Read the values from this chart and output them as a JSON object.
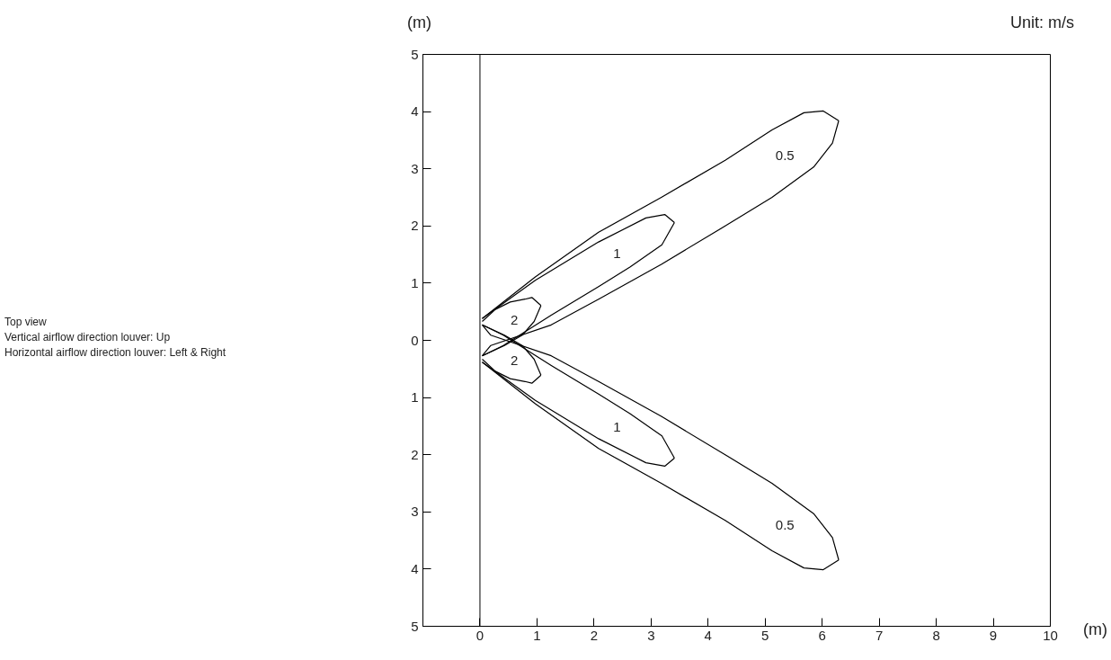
{
  "chart_data": {
    "type": "line",
    "subtitle": "Unit: m/s",
    "xlabel": "(m)",
    "ylabel": "(m)",
    "annotations": [
      "Top view\nVertical airflow direction louver: Up\nHorizontal airflow direction louver: Left & Right"
    ],
    "series": [
      {
        "name": "0.5",
        "color": "#000000",
        "x": [
          0.04,
          0.97,
          2.08,
          3.18,
          4.3,
          5.12,
          5.68,
          6.02,
          6.29
        ],
        "values": [
          0.38,
          1.11,
          1.89,
          2.5,
          3.15,
          3.68,
          3.98,
          4.01,
          3.84
        ]
      },
      {
        "color": "#000000",
        "x": [
          0.04,
          0.19,
          1.25,
          2.08,
          3.18,
          4.3,
          5.12,
          5.85,
          6.18,
          6.29
        ],
        "values": [
          -0.27,
          -0.09,
          0.27,
          0.72,
          1.33,
          2.0,
          2.5,
          3.03,
          3.45,
          3.84
        ]
      },
      {
        "name": "1",
        "color": "#000000",
        "x": [
          0.04,
          0.97,
          2.08,
          2.91,
          3.24,
          3.41
        ],
        "values": [
          0.38,
          1.05,
          1.72,
          2.14,
          2.2,
          2.06
        ]
      },
      {
        "color": "#000000",
        "x": [
          0.04,
          0.41,
          1.25,
          2.08,
          2.63,
          3.19,
          3.41
        ],
        "values": [
          -0.27,
          -0.09,
          0.44,
          0.94,
          1.28,
          1.67,
          2.06
        ]
      },
      {
        "name": "2",
        "color": "#000000",
        "x": [
          0.04,
          0.27,
          0.53,
          0.79,
          0.91,
          1.07
        ],
        "values": [
          0.33,
          0.54,
          0.67,
          0.72,
          0.75,
          0.61
        ]
      },
      {
        "color": "#000000",
        "x": [
          0.04,
          0.43,
          0.74,
          0.95,
          1.07
        ],
        "values": [
          -0.27,
          -0.09,
          0.09,
          0.33,
          0.61
        ]
      },
      {
        "name": "2",
        "color": "#000000",
        "x": [
          0.04,
          0.27,
          0.53,
          0.79,
          0.91,
          1.07
        ],
        "values": [
          -0.33,
          -0.54,
          -0.67,
          -0.72,
          -0.75,
          -0.61
        ]
      },
      {
        "color": "#000000",
        "x": [
          0.04,
          0.43,
          0.74,
          0.95,
          1.07
        ],
        "values": [
          0.27,
          0.09,
          -0.09,
          -0.33,
          -0.61
        ]
      },
      {
        "name": "1",
        "color": "#000000",
        "x": [
          0.04,
          0.97,
          2.08,
          2.91,
          3.24,
          3.41
        ],
        "values": [
          -0.38,
          -1.05,
          -1.72,
          -2.14,
          -2.2,
          -2.06
        ]
      },
      {
        "color": "#000000",
        "x": [
          0.04,
          0.41,
          1.25,
          2.08,
          2.63,
          3.19,
          3.41
        ],
        "values": [
          0.27,
          0.09,
          -0.44,
          -0.94,
          -1.28,
          -1.67,
          -2.06
        ]
      },
      {
        "name": "0.5",
        "color": "#000000",
        "x": [
          0.04,
          0.97,
          2.08,
          3.18,
          4.3,
          5.12,
          5.68,
          6.02,
          6.29
        ],
        "values": [
          -0.38,
          -1.11,
          -1.89,
          -2.5,
          -3.15,
          -3.68,
          -3.98,
          -4.01,
          -3.84
        ]
      },
      {
        "color": "#000000",
        "x": [
          0.04,
          0.19,
          1.25,
          2.08,
          3.18,
          4.3,
          5.12,
          5.85,
          6.18,
          6.29
        ],
        "values": [
          0.27,
          0.09,
          -0.27,
          -0.72,
          -1.33,
          -2.0,
          -2.5,
          -3.03,
          -3.45,
          -3.84
        ]
      }
    ],
    "xlim": [
      -1,
      10
    ],
    "ylim": [
      -5,
      5
    ],
    "xticks": [
      0,
      1,
      2,
      3,
      4,
      5,
      6,
      7,
      8,
      9,
      10
    ],
    "yticks": [
      {
        "value": -5,
        "label": "5"
      },
      {
        "value": -4,
        "label": "4"
      },
      {
        "value": -3,
        "label": "3"
      },
      {
        "value": -2,
        "label": "2"
      },
      {
        "value": -1,
        "label": "1"
      },
      0,
      1,
      2,
      3,
      4,
      5
    ],
    "ref_lines": [
      {
        "axis": "x",
        "value": 0,
        "color": "#000000"
      }
    ],
    "grid": false,
    "marker": "none",
    "line_style": "solid"
  }
}
